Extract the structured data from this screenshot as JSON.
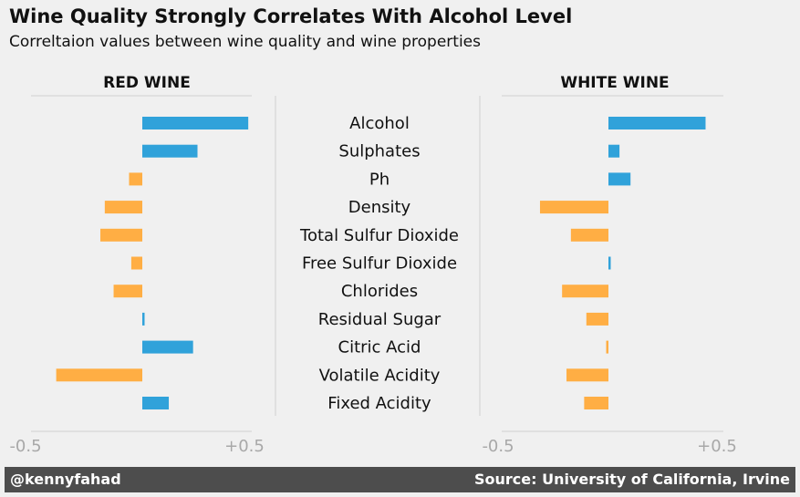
{
  "title": "Wine Quality Strongly Correlates With Alcohol Level",
  "subtitle": "Correltaion values between wine quality and wine properties",
  "footer": {
    "author": "@kennyfahad",
    "source": "Source: University of California, Irvine"
  },
  "colors": {
    "positive": "#30a2da",
    "negative": "#ffae44",
    "background": "#f0f0f0",
    "axis": "#d5d5d5",
    "tick_label": "#a8a8a8"
  },
  "chart_data": {
    "type": "bar",
    "orientation": "horizontal",
    "categories": [
      "Alcohol",
      "Sulphates",
      "Ph",
      "Density",
      "Total Sulfur Dioxide",
      "Free Sulfur Dioxide",
      "Chlorides",
      "Residual Sugar",
      "Citric Acid",
      "Volatile Acidity",
      "Fixed Acidity"
    ],
    "xlim": [
      -0.5,
      0.5
    ],
    "xticks": [
      "-0.5",
      "+0.5"
    ],
    "series": [
      {
        "name": "RED WINE",
        "values": [
          0.48,
          0.25,
          -0.06,
          -0.17,
          -0.19,
          -0.05,
          -0.13,
          0.01,
          0.23,
          -0.39,
          0.12
        ]
      },
      {
        "name": "WHITE WINE",
        "values": [
          0.44,
          0.05,
          0.1,
          -0.31,
          -0.17,
          0.01,
          -0.21,
          -0.1,
          -0.01,
          -0.19,
          -0.11
        ]
      }
    ]
  }
}
